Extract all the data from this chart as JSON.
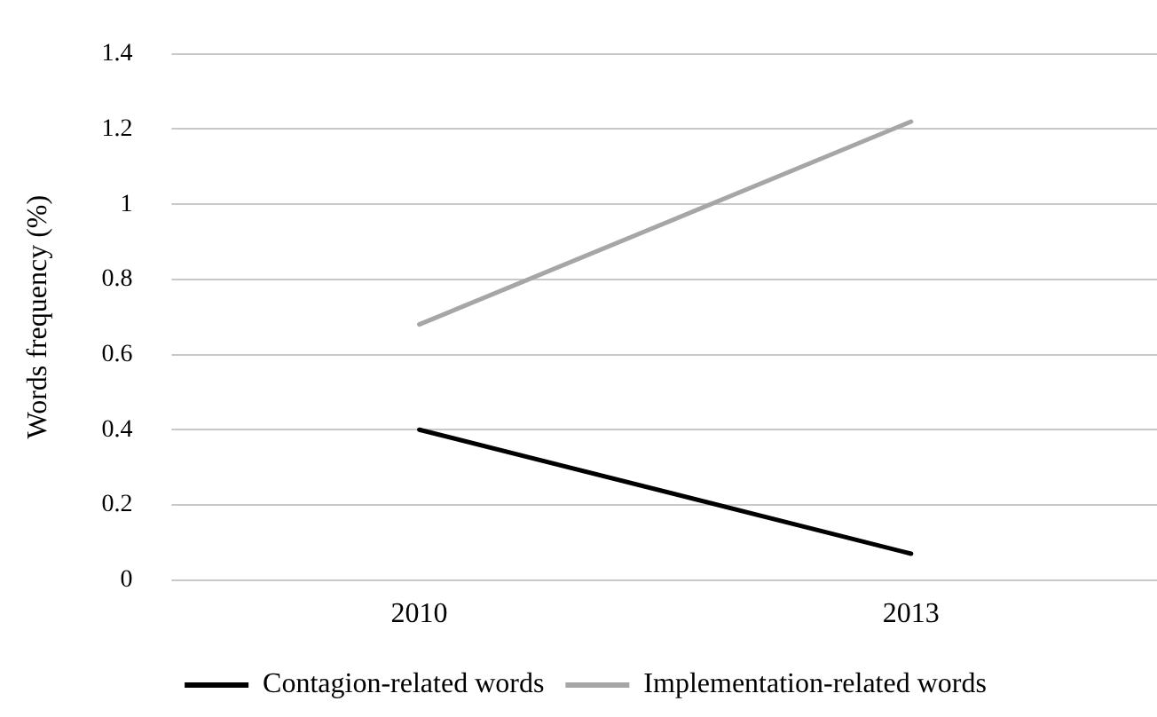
{
  "chart_data": {
    "type": "line",
    "ylabel": "Words frequency (%)",
    "categories": [
      "2010",
      "2013"
    ],
    "series": [
      {
        "name": "Contagion-related words",
        "color": "#000000",
        "values": [
          0.4,
          0.07
        ]
      },
      {
        "name": "Implementation-related words",
        "color": "#a6a6a6",
        "values": [
          0.68,
          1.22
        ]
      }
    ],
    "ylim": [
      0,
      1.4
    ],
    "yticks": [
      0,
      0.2,
      0.4,
      0.6,
      0.8,
      1,
      1.2,
      1.4
    ],
    "grid": "y",
    "legend": "bottom",
    "marker": "none",
    "line_style": "solid"
  }
}
